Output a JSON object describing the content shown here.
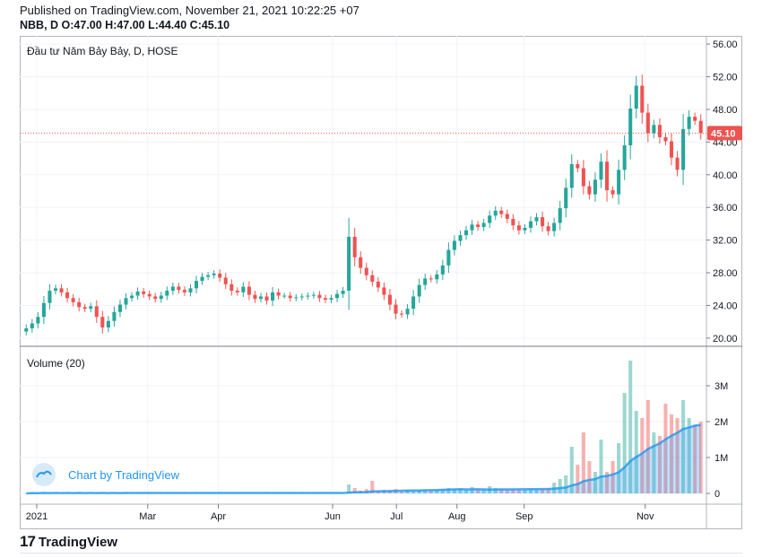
{
  "header": {
    "published": "Published on TradingView.com, November 21, 2021 10:22:25 +07",
    "ohlc": "NBB, D O:47.00 H:47.00 L:44.40 C:45.10"
  },
  "footer": {
    "logo_mark": "17",
    "logo_text": "TradingView"
  },
  "colors": {
    "up": "#26a69a",
    "down": "#ef5350",
    "volume_ma": "#2196f3",
    "last_price_badge": "#ef5350",
    "grid": "#f0f3fa"
  },
  "chart_data": [
    {
      "type": "candlestick",
      "title": "Đầu tư Năm Bảy Bảy, D, HOSE",
      "xlabel": "",
      "ylabel": "",
      "y_ticks": [
        "56.00",
        "52.00",
        "48.00",
        "44.00",
        "40.00",
        "36.00",
        "32.00",
        "28.00",
        "24.00",
        "20.00"
      ],
      "ylim": [
        19,
        57
      ],
      "x_ticks": [
        "2021",
        "Mar",
        "Apr",
        "Jun",
        "Jul",
        "Aug",
        "Sep",
        "Nov"
      ],
      "last_price": 45.1,
      "last_price_label": "45.10",
      "grid": true,
      "closes": [
        21.2,
        21.8,
        22.6,
        24.3,
        25.8,
        26.1,
        25.6,
        24.9,
        24.4,
        23.8,
        23.6,
        23.9,
        22.6,
        21.3,
        22.1,
        23.2,
        24.1,
        24.9,
        25.2,
        25.7,
        25.4,
        25.1,
        24.8,
        25.2,
        25.8,
        26.3,
        25.9,
        25.6,
        26.1,
        27.0,
        27.5,
        27.7,
        27.9,
        27.4,
        26.6,
        25.8,
        25.6,
        26.3,
        25.3,
        24.8,
        25.1,
        24.6,
        25.6,
        25.2,
        25.2,
        24.9,
        25.0,
        25.1,
        25.2,
        25.3,
        24.9,
        24.7,
        24.9,
        25.4,
        25.8,
        32.4,
        29.9,
        28.6,
        27.7,
        26.9,
        26.2,
        25.3,
        24.1,
        23.0,
        22.9,
        23.6,
        25.1,
        26.5,
        27.3,
        27.2,
        27.8,
        28.9,
        30.8,
        31.9,
        32.6,
        33.2,
        33.9,
        33.6,
        34.1,
        35.0,
        35.6,
        35.2,
        34.6,
        33.8,
        33.2,
        33.5,
        34.3,
        34.8,
        33.7,
        33.1,
        34.1,
        35.9,
        38.4,
        41.3,
        40.8,
        38.6,
        37.6,
        39.4,
        41.6,
        38.1,
        37.6,
        40.6,
        43.6,
        48.1,
        50.9,
        47.6,
        45.1,
        46.1,
        44.6,
        44.1,
        42.1,
        40.6,
        45.6,
        47.1,
        46.6,
        45.1
      ],
      "volumes_m": [
        0.0,
        0.02,
        0.0,
        0.03,
        0.0,
        0.02,
        0.0,
        0.02,
        0.0,
        0.03,
        0.0,
        0.02,
        0.0,
        0.02,
        0.0,
        0.02,
        0.0,
        0.03,
        0.0,
        0.02,
        0.0,
        0.02,
        0.0,
        0.02,
        0.0,
        0.02,
        0.0,
        0.03,
        0.0,
        0.02,
        0.0,
        0.02,
        0.0,
        0.03,
        0.0,
        0.02,
        0.0,
        0.02,
        0.0,
        0.02,
        0.0,
        0.03,
        0.0,
        0.02,
        0.0,
        0.02,
        0.0,
        0.03,
        0.0,
        0.02,
        0.0,
        0.02,
        0.0,
        0.02,
        0.0,
        0.25,
        0.15,
        0.08,
        0.12,
        0.35,
        0.06,
        0.1,
        0.08,
        0.12,
        0.05,
        0.1,
        0.05,
        0.08,
        0.1,
        0.09,
        0.08,
        0.12,
        0.15,
        0.12,
        0.12,
        0.1,
        0.18,
        0.12,
        0.1,
        0.2,
        0.15,
        0.12,
        0.1,
        0.12,
        0.1,
        0.1,
        0.12,
        0.1,
        0.12,
        0.14,
        0.3,
        0.4,
        0.5,
        1.3,
        0.8,
        1.7,
        0.9,
        0.6,
        1.5,
        0.6,
        0.9,
        1.4,
        2.8,
        3.7,
        2.3,
        2.1,
        2.6,
        1.7,
        1.6,
        2.5,
        2.2,
        2.1,
        2.6,
        2.1,
        1.9,
        2.0
      ],
      "volume_panel": {
        "label": "Volume (20)",
        "y_ticks": [
          "3M",
          "2M",
          "1M",
          "0"
        ],
        "ylim": [
          0,
          3.8
        ]
      }
    }
  ],
  "watermark": "Chart by TradingView"
}
